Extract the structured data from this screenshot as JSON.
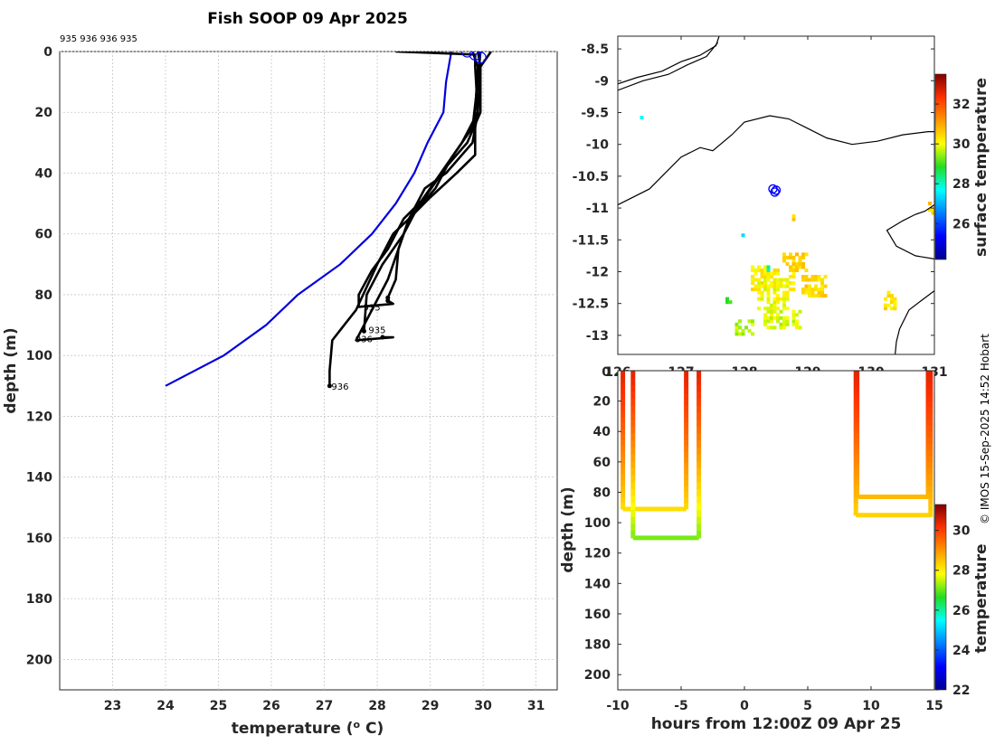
{
  "title": "Fish SOOP 09 Apr 2025",
  "drop_ids": "935 936 936 935",
  "credit": "© IMOS 15-Sep-2025 14:52 Hobart",
  "colors": {
    "model_profile": "#0000dd",
    "obs_profile": "#000000",
    "coast": "#000000",
    "marker": "#0000ff"
  },
  "chart_data": [
    {
      "type": "line",
      "name": "temperature-profile",
      "xlabel": "temperature (",
      "xlabel_sup": "o",
      "xlabel_tail": " C)",
      "ylabel": "depth (m)",
      "xlim": [
        22,
        31.4
      ],
      "ylim": [
        0,
        210
      ],
      "x_ticks": [
        23,
        24,
        25,
        26,
        27,
        28,
        29,
        30,
        31
      ],
      "y_ticks": [
        0,
        20,
        40,
        60,
        80,
        100,
        120,
        140,
        160,
        180,
        200
      ],
      "model_series": {
        "name": "climatology",
        "x": [
          29.4,
          29.3,
          29.25,
          28.95,
          28.7,
          28.35,
          27.9,
          27.3,
          26.5,
          25.9,
          25.1,
          24.0
        ],
        "y": [
          0,
          10,
          20,
          30,
          40,
          50,
          60,
          70,
          80,
          90,
          100,
          110
        ]
      },
      "obs_series": [
        {
          "id": "936",
          "label": "936",
          "x": [
            28.35,
            29.85,
            29.85,
            29.9,
            29.8,
            29.6,
            29.3,
            28.9,
            28.6,
            28.3,
            28.0,
            27.6,
            27.15,
            27.1,
            27.1
          ],
          "y": [
            0,
            1,
            5,
            20,
            30,
            34,
            40,
            45,
            55,
            60,
            70,
            85,
            95,
            105,
            110
          ]
        },
        {
          "id": "936",
          "label": "936",
          "x": [
            29.8,
            29.9,
            29.85,
            29.85,
            29.5,
            29.0,
            28.6,
            28.4,
            28.2,
            27.9,
            27.6,
            28.3,
            28.1
          ],
          "y": [
            0,
            5,
            20,
            34,
            40,
            48,
            55,
            65,
            75,
            85,
            95,
            94,
            94
          ]
        },
        {
          "id": "935",
          "label": "935",
          "x": [
            29.9,
            29.95,
            29.9,
            29.6,
            29.2,
            28.8,
            28.5,
            28.1,
            27.8,
            27.75
          ],
          "y": [
            0,
            5,
            20,
            30,
            40,
            50,
            60,
            70,
            80,
            92
          ]
        },
        {
          "id": "935",
          "label": "935",
          "x": [
            30.15,
            29.95,
            29.95,
            29.7,
            29.3,
            28.9,
            28.5,
            28.2,
            27.9,
            27.65,
            27.65,
            28.3,
            28.2
          ],
          "y": [
            0,
            5,
            20,
            30,
            38,
            48,
            55,
            65,
            72,
            80,
            84,
            83,
            82
          ]
        },
        {
          "id": "",
          "label": "",
          "x": [
            29.95,
            29.9,
            29.8,
            29.4,
            29.1,
            28.6,
            28.4,
            28.35,
            28.2
          ],
          "y": [
            0,
            10,
            25,
            35,
            45,
            55,
            65,
            75,
            81
          ]
        }
      ],
      "obs_labels": [
        {
          "text": "936",
          "x": 27.1,
          "y": 110
        },
        {
          "text": "936",
          "x": 27.55,
          "y": 94.5
        },
        {
          "text": "935",
          "x": 27.8,
          "y": 91.5
        },
        {
          "text": "935",
          "x": 27.7,
          "y": 84
        }
      ],
      "markers": [
        {
          "x": 29.7,
          "y": 0
        },
        {
          "x": 29.85,
          "y": 1
        },
        {
          "x": 29.95,
          "y": 2
        }
      ]
    },
    {
      "type": "heatmap",
      "name": "surface-temperature-map",
      "colorbar_label": "surface temperature",
      "xlim": [
        126,
        131
      ],
      "ylim": [
        -13.3,
        -8.3
      ],
      "x_ticks": [
        126,
        127,
        128,
        129,
        130,
        131
      ],
      "x_tick_labels": [
        "126",
        "127",
        "128",
        "129",
        "130",
        "131"
      ],
      "y_ticks": [
        -8.5,
        -9,
        -9.5,
        -10,
        -10.5,
        -11,
        -11.5,
        -12,
        -12.5,
        -13
      ],
      "y_tick_labels": [
        "-8.5",
        "-9",
        "-9.5",
        "-10",
        "-10.5",
        "-11",
        "-11.5",
        "-12",
        "-12.5",
        "-13"
      ],
      "colorbar_ticks": [
        26,
        28,
        30,
        32
      ],
      "colorbar_range": [
        24.2,
        33.5
      ],
      "track_markers": [
        {
          "lon": 128.45,
          "lat": -10.7
        },
        {
          "lon": 128.5,
          "lat": -10.72
        },
        {
          "lon": 128.48,
          "lat": -10.75
        }
      ],
      "coastlines": [
        [
          [
            126,
            -9.05
          ],
          [
            126.3,
            -8.95
          ],
          [
            126.7,
            -8.85
          ],
          [
            127.0,
            -8.7
          ],
          [
            127.3,
            -8.6
          ],
          [
            127.55,
            -8.45
          ],
          [
            127.6,
            -8.3
          ]
        ],
        [
          [
            126,
            -9.15
          ],
          [
            126.4,
            -9.0
          ],
          [
            126.8,
            -8.9
          ],
          [
            127.1,
            -8.75
          ],
          [
            127.4,
            -8.62
          ],
          [
            127.58,
            -8.4
          ]
        ],
        [
          [
            126,
            -10.95
          ],
          [
            126.5,
            -10.7
          ],
          [
            126.8,
            -10.4
          ],
          [
            127.0,
            -10.2
          ],
          [
            127.3,
            -10.05
          ],
          [
            127.5,
            -10.1
          ],
          [
            127.8,
            -9.85
          ],
          [
            128.0,
            -9.65
          ],
          [
            128.4,
            -9.55
          ],
          [
            128.7,
            -9.6
          ],
          [
            129.0,
            -9.75
          ],
          [
            129.3,
            -9.9
          ],
          [
            129.7,
            -10.0
          ],
          [
            130.1,
            -9.95
          ],
          [
            130.5,
            -9.85
          ],
          [
            130.9,
            -9.8
          ],
          [
            131,
            -9.8
          ]
        ],
        [
          [
            131,
            -11.8
          ],
          [
            130.7,
            -11.75
          ],
          [
            130.4,
            -11.6
          ],
          [
            130.25,
            -11.35
          ],
          [
            130.5,
            -11.2
          ],
          [
            130.7,
            -11.1
          ],
          [
            130.85,
            -11.05
          ],
          [
            131,
            -10.95
          ]
        ],
        [
          [
            131,
            -12.3
          ],
          [
            130.8,
            -12.45
          ],
          [
            130.6,
            -12.6
          ],
          [
            130.45,
            -12.9
          ],
          [
            130.4,
            -13.1
          ],
          [
            130.38,
            -13.3
          ]
        ]
      ],
      "sst_patches": [
        {
          "lon": 128.1,
          "lat": -12.3,
          "w": 0.7,
          "h": 0.4,
          "t": 30.2
        },
        {
          "lon": 128.2,
          "lat": -12.6,
          "w": 0.5,
          "h": 0.5,
          "t": 30.0
        },
        {
          "lon": 128.6,
          "lat": -12.0,
          "w": 0.4,
          "h": 0.3,
          "t": 30.5
        },
        {
          "lon": 128.9,
          "lat": -12.4,
          "w": 0.4,
          "h": 0.35,
          "t": 30.4
        },
        {
          "lon": 128.3,
          "lat": -12.9,
          "w": 0.6,
          "h": 0.3,
          "t": 29.8
        },
        {
          "lon": 127.85,
          "lat": -13.0,
          "w": 0.3,
          "h": 0.25,
          "t": 29.6
        },
        {
          "lon": 130.2,
          "lat": -12.6,
          "w": 0.2,
          "h": 0.3,
          "t": 30.3
        },
        {
          "lon": 130.9,
          "lat": -11.1,
          "w": 0.1,
          "h": 0.2,
          "t": 30.5
        },
        {
          "lon": 128.75,
          "lat": -11.2,
          "w": 0.08,
          "h": 0.15,
          "t": 30.6
        },
        {
          "lon": 127.7,
          "lat": -12.5,
          "w": 0.1,
          "h": 0.1,
          "t": 29.0
        },
        {
          "lon": 128.35,
          "lat": -12.0,
          "w": 0.1,
          "h": 0.1,
          "t": 28.0
        },
        {
          "lon": 126.3,
          "lat": -9.6,
          "w": 0.08,
          "h": 0.08,
          "t": 27.5
        },
        {
          "lon": 127.95,
          "lat": -11.45,
          "w": 0.06,
          "h": 0.06,
          "t": 27.3
        }
      ]
    },
    {
      "type": "scatter",
      "name": "depth-time-section",
      "xlabel": "hours from 12:00Z 09 Apr 25",
      "ylabel": "depth (m)",
      "colorbar_label": "temperature",
      "xlim": [
        -10,
        15
      ],
      "ylim": [
        0,
        210
      ],
      "x_ticks": [
        -10,
        -5,
        0,
        5,
        10,
        15
      ],
      "y_ticks": [
        20,
        40,
        60,
        80,
        100,
        120,
        140,
        160,
        180,
        200
      ],
      "top_y_tick_label": "0",
      "colorbar_ticks": [
        22,
        24,
        26,
        28,
        30
      ],
      "colorbar_range": [
        22,
        31.3
      ],
      "casts": [
        {
          "hours": -9.6,
          "max_depth": 91,
          "bottom_temp": 28.2
        },
        {
          "hours": -8.8,
          "max_depth": 110,
          "bottom_temp": 27.1
        },
        {
          "hours": -4.6,
          "max_depth": 91,
          "bottom_temp": 28.2
        },
        {
          "hours": -3.6,
          "max_depth": 110,
          "bottom_temp": 27.1
        },
        {
          "hours": 8.8,
          "max_depth": 95,
          "bottom_temp": 28.3
        },
        {
          "hours": 8.9,
          "max_depth": 82,
          "bottom_temp": 28.6
        },
        {
          "hours": 14.5,
          "max_depth": 84,
          "bottom_temp": 28.6
        },
        {
          "hours": 14.7,
          "max_depth": 96,
          "bottom_temp": 28.3
        }
      ],
      "bottom_connectors": [
        {
          "from": -9.6,
          "to": -4.6,
          "depth": 91,
          "temp": 28.2
        },
        {
          "from": -8.8,
          "to": -3.6,
          "depth": 110,
          "temp": 27.1
        },
        {
          "from": 8.9,
          "to": 14.5,
          "depth": 83,
          "temp": 28.6
        },
        {
          "from": 8.8,
          "to": 14.7,
          "depth": 95,
          "temp": 28.3
        }
      ]
    }
  ]
}
